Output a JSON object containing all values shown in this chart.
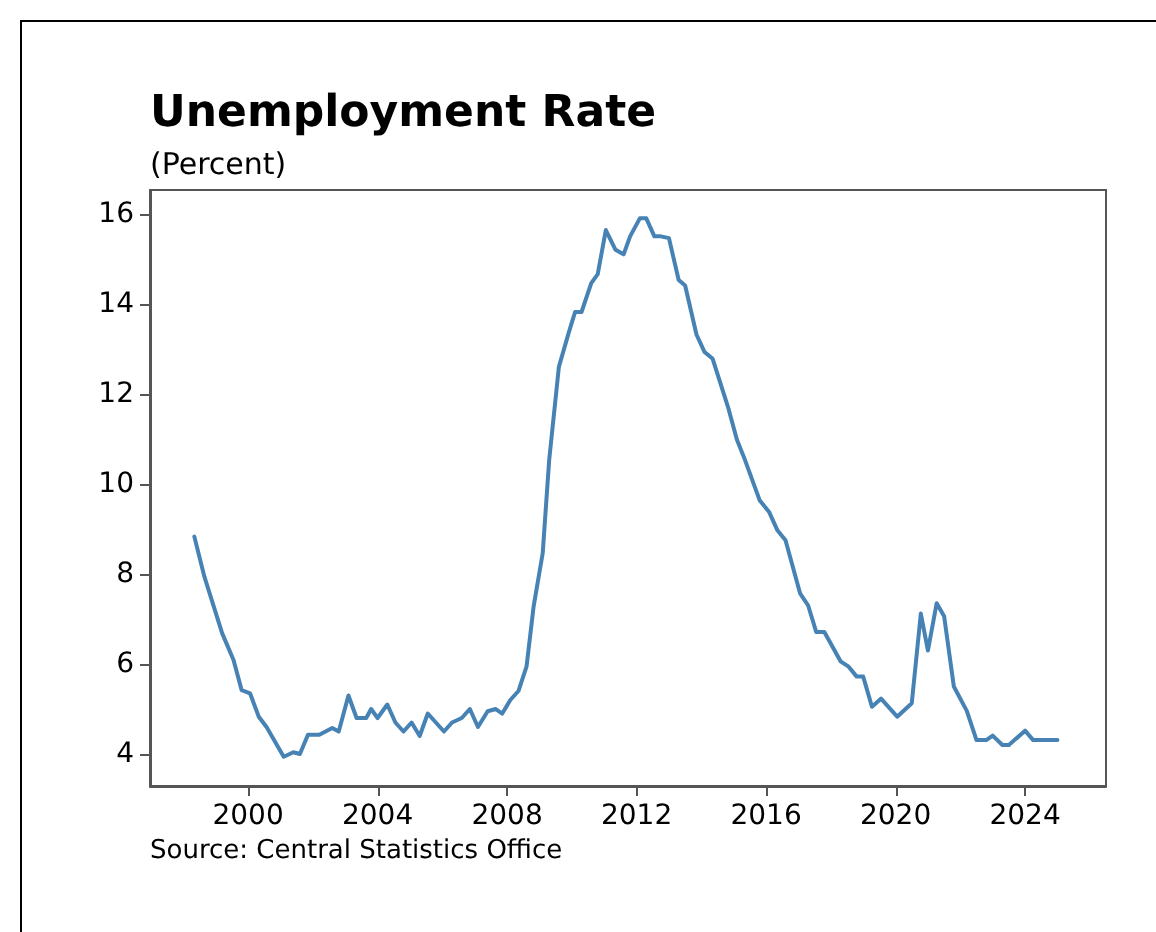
{
  "chart_data": {
    "type": "line",
    "title": "Unemployment Rate",
    "subtitle": "(Percent)",
    "annotations": [
      "Source: Central Statistics Office"
    ],
    "x": [
      1998.34,
      1998.65,
      1999.2,
      1999.55,
      1999.8,
      2000.06,
      2000.33,
      2000.57,
      2001.1,
      2001.4,
      2001.6,
      2001.85,
      2002.2,
      2002.6,
      2002.8,
      2003.1,
      2003.35,
      2003.65,
      2003.8,
      2004.0,
      2004.3,
      2004.55,
      2004.8,
      2005.05,
      2005.3,
      2005.55,
      2006.05,
      2006.3,
      2006.6,
      2006.85,
      2007.1,
      2007.4,
      2007.65,
      2007.85,
      2008.1,
      2008.35,
      2008.6,
      2008.82,
      2009.1,
      2009.3,
      2009.6,
      2009.9,
      2010.1,
      2010.3,
      2010.6,
      2010.8,
      2011.05,
      2011.35,
      2011.6,
      2011.8,
      2012.1,
      2012.3,
      2012.55,
      2012.75,
      2013.0,
      2013.3,
      2013.5,
      2013.85,
      2014.1,
      2014.35,
      2014.82,
      2015.1,
      2015.35,
      2015.8,
      2016.1,
      2016.35,
      2016.6,
      2017.05,
      2017.3,
      2017.55,
      2017.8,
      2018.3,
      2018.55,
      2018.8,
      2019.0,
      2019.27,
      2019.55,
      2020.05,
      2020.5,
      2020.78,
      2021.0,
      2021.27,
      2021.5,
      2021.8,
      2022.2,
      2022.5,
      2022.8,
      2023.0,
      2023.3,
      2023.5,
      2024.0,
      2024.25,
      2025.0
    ],
    "series": [
      {
        "color": "#4682b4",
        "values": [
          8.83,
          7.94,
          6.68,
          6.09,
          5.42,
          5.35,
          4.83,
          4.6,
          3.94,
          4.04,
          4.0,
          4.43,
          4.43,
          4.58,
          4.5,
          5.3,
          4.8,
          4.8,
          5.0,
          4.8,
          5.1,
          4.7,
          4.5,
          4.7,
          4.4,
          4.9,
          4.5,
          4.7,
          4.8,
          5.0,
          4.6,
          4.95,
          5.0,
          4.9,
          5.2,
          5.4,
          5.94,
          7.28,
          8.46,
          10.53,
          12.6,
          13.35,
          13.82,
          13.82,
          14.46,
          14.66,
          15.64,
          15.2,
          15.1,
          15.5,
          15.9,
          15.9,
          15.5,
          15.5,
          15.46,
          14.53,
          14.41,
          13.32,
          12.93,
          12.78,
          11.72,
          10.98,
          10.53,
          9.64,
          9.37,
          8.97,
          8.75,
          7.57,
          7.3,
          6.71,
          6.71,
          6.06,
          5.94,
          5.72,
          5.72,
          5.05,
          5.23,
          4.83,
          5.13,
          7.12,
          6.3,
          7.35,
          7.06,
          5.5,
          4.96,
          4.31,
          4.31,
          4.41,
          4.2,
          4.2,
          4.52,
          4.31,
          4.31
        ]
      }
    ],
    "xlim": [
      1996.97,
      2026.5
    ],
    "xticks": [
      2000,
      2004,
      2008,
      2012,
      2016,
      2020,
      2024
    ],
    "ylim": [
      3.29,
      16.53
    ],
    "yticks": [
      4,
      6,
      8,
      10,
      12,
      14,
      16
    ],
    "grid": false,
    "marker": "none",
    "line_style": "solid"
  }
}
